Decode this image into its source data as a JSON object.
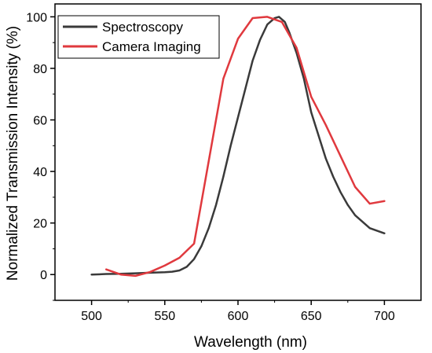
{
  "chart_data": {
    "type": "line",
    "title": "",
    "xlabel": "Wavelength (nm)",
    "ylabel": "Normalized Transmission Intensity (%)",
    "xlim": [
      475,
      725
    ],
    "ylim": [
      -10,
      105
    ],
    "xticks": [
      500,
      550,
      600,
      650,
      700
    ],
    "yticks": [
      0,
      20,
      40,
      60,
      80,
      100
    ],
    "grid": false,
    "legend_position": "top-left",
    "series": [
      {
        "name": "Spectroscopy",
        "color": "#3a3a3a",
        "x": [
          500,
          510,
          520,
          530,
          540,
          550,
          555,
          560,
          565,
          570,
          575,
          580,
          585,
          590,
          595,
          600,
          605,
          610,
          615,
          620,
          625,
          628,
          632,
          635,
          640,
          645,
          650,
          655,
          660,
          665,
          670,
          675,
          680,
          690,
          700
        ],
        "y": [
          0,
          0.2,
          0.3,
          0.5,
          0.7,
          0.9,
          1.1,
          1.6,
          3,
          6,
          11,
          18,
          27,
          38,
          50,
          61,
          72,
          83,
          91,
          97,
          99.5,
          100,
          98,
          94,
          86,
          76,
          63,
          54,
          45,
          38,
          32,
          27,
          23,
          18,
          16
        ]
      },
      {
        "name": "Camera Imaging",
        "color": "#e0393e",
        "x": [
          510,
          520,
          530,
          540,
          550,
          560,
          570,
          580,
          590,
          600,
          610,
          620,
          630,
          640,
          650,
          660,
          670,
          680,
          690,
          700
        ],
        "y": [
          2,
          0,
          -0.5,
          1,
          3.5,
          6.5,
          12,
          44,
          76,
          91.5,
          99.5,
          100,
          98,
          88,
          69,
          58,
          46,
          34,
          27.5,
          28.5
        ]
      }
    ]
  }
}
